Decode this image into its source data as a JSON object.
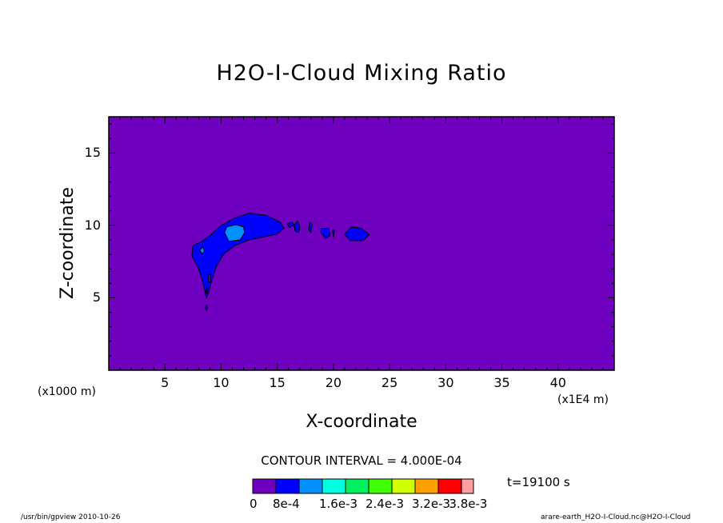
{
  "chart_data": {
    "type": "heatmap",
    "title": "H2O-I-Cloud Mixing Ratio",
    "xlabel": "X-coordinate",
    "ylabel": "Z-coordinate",
    "x_unit_left": "(x1000 m)",
    "x_unit_right": "(x1E4 m)",
    "xlim": [
      0,
      45
    ],
    "ylim": [
      0,
      17.5
    ],
    "x_ticks": [
      5,
      10,
      15,
      20,
      25,
      30,
      35,
      40
    ],
    "y_ticks": [
      5,
      10,
      15
    ],
    "background_level_color": "#7000c0",
    "contour_interval_text": "CONTOUR INTERVAL = 4.000E-04",
    "time_text": "t=19100 s",
    "colorbar": {
      "colors": [
        "#7000c0",
        "#0000ff",
        "#0090ff",
        "#00ffe0",
        "#00f060",
        "#40ff00",
        "#d0ff00",
        "#ffa000",
        "#ff0000",
        "#ffa0a0"
      ],
      "labels": [
        "0",
        "8e-4",
        "1.6e-3",
        "2.4e-3",
        "3.2e-3",
        "3.8e-3"
      ],
      "label_positions": [
        0,
        1,
        3,
        5,
        7,
        8.6
      ]
    },
    "regions": [
      {
        "level": 1,
        "color": "#0000ff",
        "points": [
          [
            7.4,
            7.9
          ],
          [
            7.5,
            8.6
          ],
          [
            8.3,
            8.9
          ],
          [
            9.0,
            9.3
          ],
          [
            10.0,
            10.0
          ],
          [
            11.2,
            10.5
          ],
          [
            12.5,
            10.85
          ],
          [
            14.0,
            10.7
          ],
          [
            15.3,
            10.2
          ],
          [
            15.6,
            9.8
          ],
          [
            15.0,
            9.4
          ],
          [
            13.8,
            9.2
          ],
          [
            12.5,
            9.0
          ],
          [
            11.2,
            8.6
          ],
          [
            10.2,
            8.0
          ],
          [
            9.6,
            7.2
          ],
          [
            9.2,
            6.3
          ],
          [
            8.9,
            5.4
          ],
          [
            8.7,
            5.0
          ],
          [
            8.3,
            6.3
          ],
          [
            8.0,
            7.0
          ]
        ]
      },
      {
        "level": 1,
        "color": "#0000ff",
        "points": [
          [
            15.9,
            10.1
          ],
          [
            16.3,
            10.25
          ],
          [
            16.5,
            10.05
          ],
          [
            16.1,
            9.85
          ]
        ]
      },
      {
        "level": 1,
        "color": "#0000ff",
        "points": [
          [
            16.5,
            10.0
          ],
          [
            16.8,
            10.3
          ],
          [
            17.0,
            9.9
          ],
          [
            16.9,
            9.5
          ],
          [
            16.6,
            9.6
          ]
        ]
      },
      {
        "level": 1,
        "color": "#0000ff",
        "points": [
          [
            17.9,
            10.2
          ],
          [
            18.1,
            10.1
          ],
          [
            18.0,
            9.5
          ],
          [
            17.8,
            9.7
          ]
        ]
      },
      {
        "level": 1,
        "color": "#0000ff",
        "points": [
          [
            18.9,
            9.8
          ],
          [
            19.6,
            9.8
          ],
          [
            19.7,
            9.3
          ],
          [
            19.3,
            9.1
          ],
          [
            18.9,
            9.5
          ]
        ]
      },
      {
        "level": 1,
        "color": "#0000ff",
        "points": [
          [
            19.9,
            9.7
          ],
          [
            20.1,
            9.7
          ],
          [
            20.0,
            9.2
          ]
        ]
      },
      {
        "level": 1,
        "color": "#0000ff",
        "points": [
          [
            21.0,
            9.4
          ],
          [
            21.6,
            9.9
          ],
          [
            22.5,
            9.8
          ],
          [
            23.2,
            9.35
          ],
          [
            22.6,
            8.95
          ],
          [
            21.5,
            8.95
          ]
        ]
      },
      {
        "level": 1,
        "color": "#0000ff",
        "points": [
          [
            8.7,
            4.5
          ],
          [
            8.8,
            4.3
          ],
          [
            8.7,
            4.1
          ],
          [
            8.6,
            4.3
          ]
        ]
      },
      {
        "level": 2,
        "color": "#0090ff",
        "points": [
          [
            10.3,
            9.5
          ],
          [
            10.5,
            9.9
          ],
          [
            11.3,
            10.05
          ],
          [
            12.0,
            9.9
          ],
          [
            12.1,
            9.5
          ],
          [
            11.7,
            9.0
          ],
          [
            10.7,
            8.9
          ]
        ]
      },
      {
        "level": 2,
        "color": "#0090ff",
        "points": [
          [
            8.1,
            8.3
          ],
          [
            8.4,
            8.5
          ],
          [
            8.5,
            8.2
          ],
          [
            8.3,
            8.05
          ]
        ]
      },
      {
        "level": 0,
        "color": "#7000c0",
        "points": [
          [
            8.85,
            6.6
          ],
          [
            9.05,
            6.6
          ],
          [
            9.05,
            6.1
          ],
          [
            8.9,
            6.1
          ]
        ]
      },
      {
        "level": 0,
        "color": "#7000c0",
        "points": [
          [
            8.7,
            5.7
          ],
          [
            8.8,
            5.7
          ],
          [
            8.8,
            5.3
          ],
          [
            8.7,
            5.3
          ]
        ]
      }
    ]
  },
  "footer": {
    "left": "/usr/bin/gpview  2010-10-26",
    "right": "arare-earth_H2O-I-Cloud.nc@H2O-I-Cloud"
  }
}
